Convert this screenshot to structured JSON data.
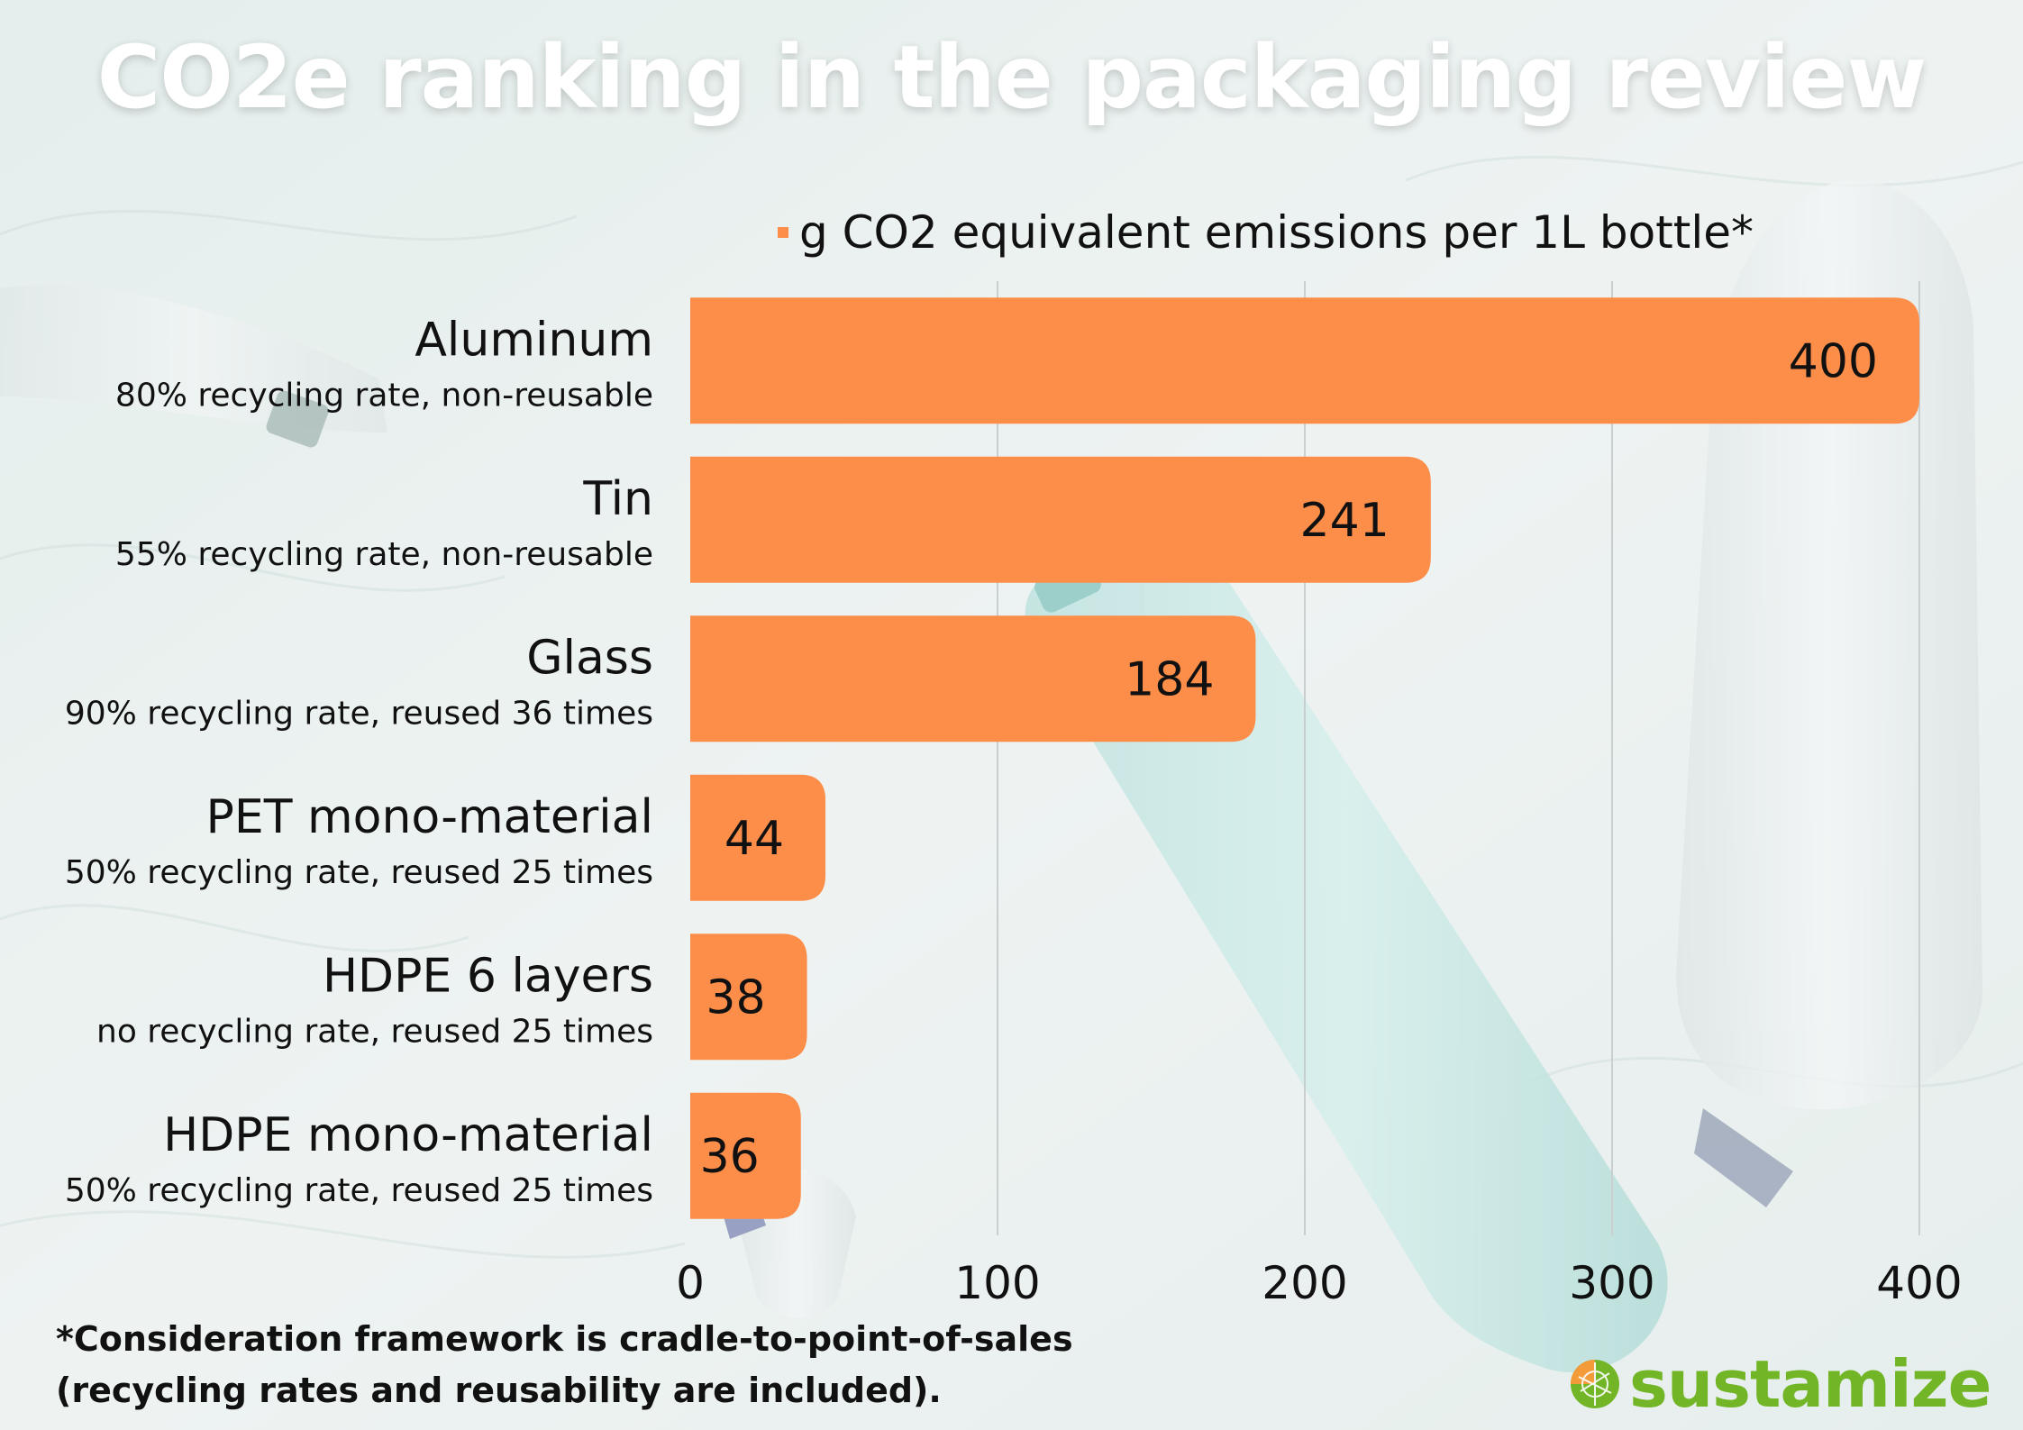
{
  "title": "CO2e ranking in the packaging review",
  "footnote": {
    "line1": "*Consideration framework is cradle-to-point-of-sales",
    "line2": "(recycling rates and reusability are included)."
  },
  "brand": {
    "name": "sustamize",
    "color_orange": "#f29b38",
    "color_green": "#72b526"
  },
  "colors": {
    "bar": "#fd8e4a",
    "label": "#111111",
    "grid": "#c9cfce"
  },
  "chart_data": {
    "type": "bar",
    "orientation": "horizontal",
    "categories": [
      "Aluminum",
      "Tin",
      "Glass",
      "PET mono-material",
      "HDPE 6 layers",
      "HDPE mono-material"
    ],
    "subtitles": [
      "80% recycling rate, non-reusable",
      "55% recycling rate, non-reusable",
      "90% recycling rate, reused 36 times",
      "50% recycling rate, reused 25 times",
      "no recycling rate, reused 25 times",
      "50% recycling rate, reused 25 times"
    ],
    "series": [
      {
        "name": "g CO2 equivalent emissions per 1L bottle*",
        "values": [
          400,
          241,
          184,
          44,
          38,
          36
        ]
      }
    ],
    "xlim": [
      0,
      400
    ],
    "xticks": [
      0,
      100,
      200,
      300,
      400
    ],
    "grid": true,
    "legend": "top",
    "title": "CO2e ranking in the packaging review",
    "xlabel": "",
    "ylabel": ""
  }
}
